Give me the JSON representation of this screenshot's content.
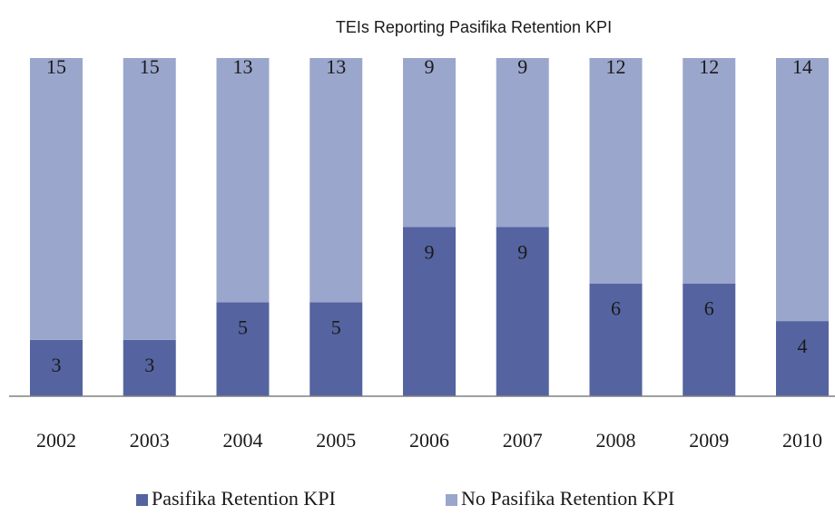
{
  "chart_data": {
    "type": "stacked-bar",
    "title": "TEIs Reporting Pasifika Retention KPI",
    "categories": [
      "2002",
      "2003",
      "2004",
      "2005",
      "2006",
      "2007",
      "2008",
      "2009",
      "2010"
    ],
    "series": [
      {
        "name": "Pasifika Retention KPI",
        "color": "#5564a0",
        "values": [
          3,
          3,
          5,
          5,
          9,
          9,
          6,
          6,
          4
        ]
      },
      {
        "name": "No Pasifika Retention KPI",
        "color": "#9ba6cc",
        "values": [
          15,
          15,
          13,
          13,
          9,
          9,
          12,
          12,
          14
        ]
      }
    ],
    "ylim": [
      0,
      18
    ],
    "legend": "bottom"
  }
}
